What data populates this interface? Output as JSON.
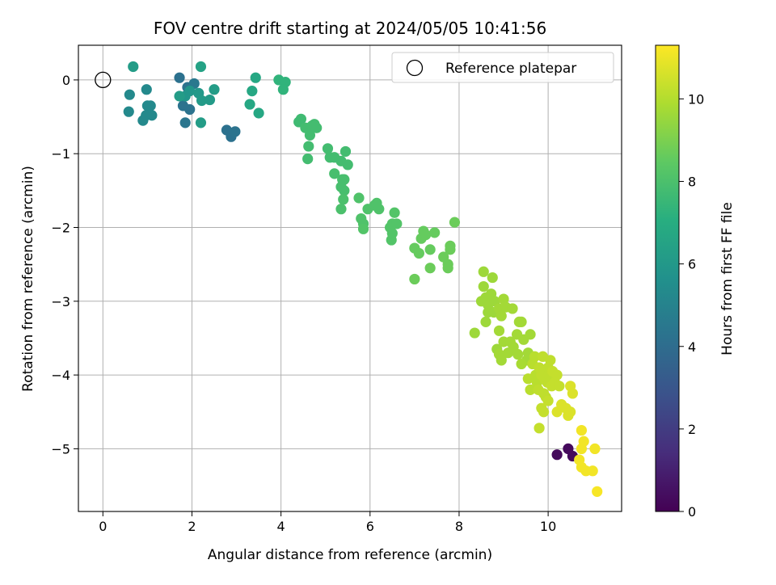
{
  "chart_data": {
    "type": "scatter",
    "title": "FOV centre drift starting at 2024/05/05 10:41:56",
    "xlabel": "Angular distance from reference (arcmin)",
    "ylabel": "Rotation from reference (arcmin)",
    "xlim": [
      -0.55,
      11.65
    ],
    "ylim": [
      -5.85,
      0.47
    ],
    "xticks": [
      "0",
      "2",
      "4",
      "6",
      "8",
      "10"
    ],
    "yticks": [
      "0",
      "−1",
      "−2",
      "−3",
      "−4",
      "−5"
    ],
    "grid": true,
    "legend": {
      "position": "top-right",
      "entries": [
        "Reference platepar"
      ]
    },
    "reference_point": {
      "x": 0,
      "y": 0
    },
    "colorbar": {
      "label": "Hours from first FF file",
      "range": [
        0,
        11.3
      ],
      "ticks": [
        "0",
        "2",
        "4",
        "6",
        "8",
        "10"
      ],
      "colormap": [
        "#440154",
        "#472d7b",
        "#3b528b",
        "#2c728e",
        "#21918c",
        "#28ae80",
        "#5ec962",
        "#addc30",
        "#fde725"
      ]
    },
    "points": [
      [
        10.2,
        -5.08,
        0.3
      ],
      [
        10.45,
        -5.0,
        0.3
      ],
      [
        10.55,
        -5.1,
        0.3
      ],
      [
        1.72,
        0.03,
        4.2
      ],
      [
        1.9,
        -0.1,
        4.3
      ],
      [
        1.95,
        -0.4,
        4.3
      ],
      [
        1.85,
        -0.58,
        4.4
      ],
      [
        1.8,
        -0.35,
        4.3
      ],
      [
        2.05,
        -0.05,
        4.5
      ],
      [
        2.78,
        -0.68,
        4.2
      ],
      [
        2.88,
        -0.77,
        4.2
      ],
      [
        2.97,
        -0.7,
        4.3
      ],
      [
        0.6,
        -0.2,
        5.3
      ],
      [
        0.58,
        -0.43,
        5.3
      ],
      [
        0.9,
        -0.55,
        5.3
      ],
      [
        0.97,
        -0.48,
        5.3
      ],
      [
        1.0,
        -0.35,
        5.3
      ],
      [
        1.07,
        -0.35,
        5.3
      ],
      [
        1.1,
        -0.48,
        5.3
      ],
      [
        0.98,
        -0.13,
        5.3
      ],
      [
        1.85,
        -0.22,
        5.9
      ],
      [
        1.95,
        -0.15,
        5.9
      ],
      [
        2.15,
        -0.18,
        6.0
      ],
      [
        2.22,
        -0.28,
        6.1
      ],
      [
        2.4,
        -0.27,
        6.1
      ],
      [
        2.5,
        -0.13,
        6.2
      ],
      [
        2.2,
        -0.58,
        6.2
      ],
      [
        0.68,
        0.18,
        6.2
      ],
      [
        1.72,
        -0.22,
        6.2
      ],
      [
        2.2,
        0.18,
        6.5
      ],
      [
        3.3,
        -0.33,
        6.7
      ],
      [
        3.35,
        -0.15,
        6.7
      ],
      [
        3.43,
        0.03,
        6.7
      ],
      [
        3.5,
        -0.45,
        6.7
      ],
      [
        3.95,
        0.0,
        7.3
      ],
      [
        4.1,
        -0.03,
        7.3
      ],
      [
        4.05,
        -0.13,
        7.3
      ],
      [
        4.4,
        -0.57,
        7.7
      ],
      [
        4.45,
        -0.53,
        7.7
      ],
      [
        4.55,
        -0.65,
        7.8
      ],
      [
        4.65,
        -0.75,
        7.8
      ],
      [
        4.62,
        -0.9,
        7.8
      ],
      [
        4.6,
        -1.07,
        7.8
      ],
      [
        4.7,
        -0.62,
        7.8
      ],
      [
        4.75,
        -0.6,
        7.8
      ],
      [
        4.8,
        -0.65,
        7.8
      ],
      [
        5.05,
        -0.93,
        7.8
      ],
      [
        5.1,
        -1.05,
        7.8
      ],
      [
        5.2,
        -1.05,
        7.8
      ],
      [
        5.35,
        -1.1,
        7.8
      ],
      [
        5.45,
        -0.97,
        7.8
      ],
      [
        5.5,
        -1.15,
        7.8
      ],
      [
        5.2,
        -1.27,
        7.9
      ],
      [
        5.38,
        -1.35,
        7.9
      ],
      [
        5.42,
        -1.35,
        7.9
      ],
      [
        5.35,
        -1.45,
        7.9
      ],
      [
        5.42,
        -1.5,
        7.9
      ],
      [
        5.4,
        -1.62,
        8.0
      ],
      [
        5.35,
        -1.75,
        8.0
      ],
      [
        5.75,
        -1.6,
        8.1
      ],
      [
        5.8,
        -1.88,
        8.1
      ],
      [
        5.85,
        -1.95,
        8.1
      ],
      [
        5.95,
        -1.75,
        8.1
      ],
      [
        6.1,
        -1.7,
        8.1
      ],
      [
        6.15,
        -1.67,
        8.1
      ],
      [
        6.2,
        -1.75,
        8.1
      ],
      [
        5.85,
        -2.02,
        8.2
      ],
      [
        6.45,
        -2.0,
        8.2
      ],
      [
        6.5,
        -1.95,
        8.2
      ],
      [
        6.55,
        -1.8,
        8.2
      ],
      [
        6.48,
        -2.17,
        8.2
      ],
      [
        6.5,
        -2.08,
        8.2
      ],
      [
        6.6,
        -1.95,
        8.2
      ],
      [
        7.0,
        -2.28,
        8.6
      ],
      [
        7.1,
        -2.35,
        8.6
      ],
      [
        7.15,
        -2.15,
        8.6
      ],
      [
        7.2,
        -2.05,
        8.6
      ],
      [
        7.25,
        -2.1,
        8.6
      ],
      [
        7.35,
        -2.3,
        8.6
      ],
      [
        7.45,
        -2.07,
        8.6
      ],
      [
        7.35,
        -2.55,
        8.7
      ],
      [
        7.0,
        -2.7,
        8.7
      ],
      [
        7.65,
        -2.4,
        8.7
      ],
      [
        7.75,
        -2.5,
        8.7
      ],
      [
        7.75,
        -2.55,
        8.7
      ],
      [
        7.8,
        -2.25,
        8.7
      ],
      [
        7.8,
        -2.3,
        8.7
      ],
      [
        7.9,
        -1.93,
        8.7
      ],
      [
        8.35,
        -3.43,
        9.6
      ],
      [
        8.5,
        -3.0,
        9.6
      ],
      [
        8.55,
        -2.6,
        9.6
      ],
      [
        8.6,
        -3.28,
        9.6
      ],
      [
        8.55,
        -2.8,
        9.6
      ],
      [
        8.6,
        -2.95,
        9.6
      ],
      [
        8.65,
        -3.05,
        9.6
      ],
      [
        8.65,
        -3.15,
        9.6
      ],
      [
        8.72,
        -2.9,
        9.6
      ],
      [
        8.75,
        -2.68,
        9.6
      ],
      [
        8.78,
        -3.15,
        9.6
      ],
      [
        8.8,
        -3.0,
        9.6
      ],
      [
        8.85,
        -3.65,
        9.6
      ],
      [
        8.9,
        -3.1,
        9.7
      ],
      [
        8.95,
        -3.2,
        9.7
      ],
      [
        8.9,
        -3.4,
        9.7
      ],
      [
        9.0,
        -2.97,
        9.7
      ],
      [
        9.0,
        -3.55,
        9.7
      ],
      [
        9.05,
        -3.08,
        9.7
      ],
      [
        9.1,
        -3.7,
        9.7
      ],
      [
        9.15,
        -3.55,
        9.7
      ],
      [
        9.2,
        -3.1,
        9.7
      ],
      [
        9.22,
        -3.62,
        9.7
      ],
      [
        9.3,
        -3.45,
        9.7
      ],
      [
        9.32,
        -3.72,
        9.7
      ],
      [
        9.35,
        -3.28,
        9.7
      ],
      [
        9.4,
        -3.28,
        9.7
      ],
      [
        9.45,
        -3.52,
        9.7
      ],
      [
        9.52,
        -3.8,
        9.7
      ],
      [
        9.55,
        -3.7,
        9.7
      ],
      [
        9.6,
        -3.45,
        9.7
      ],
      [
        8.9,
        -3.72,
        9.7
      ],
      [
        8.95,
        -3.8,
        9.7
      ],
      [
        9.4,
        -3.85,
        9.8
      ],
      [
        9.55,
        -4.05,
        10.1
      ],
      [
        9.6,
        -4.2,
        10.1
      ],
      [
        9.65,
        -3.85,
        10.1
      ],
      [
        9.7,
        -3.75,
        10.1
      ],
      [
        9.72,
        -4.0,
        10.1
      ],
      [
        9.75,
        -4.1,
        10.1
      ],
      [
        9.78,
        -4.2,
        10.2
      ],
      [
        9.8,
        -3.9,
        10.2
      ],
      [
        9.85,
        -4.0,
        10.2
      ],
      [
        9.88,
        -3.75,
        10.2
      ],
      [
        9.9,
        -4.25,
        10.2
      ],
      [
        9.92,
        -4.05,
        10.2
      ],
      [
        9.95,
        -4.3,
        10.2
      ],
      [
        9.98,
        -4.1,
        10.2
      ],
      [
        10.0,
        -3.9,
        10.2
      ],
      [
        10.02,
        -4.0,
        10.2
      ],
      [
        10.05,
        -3.8,
        10.2
      ],
      [
        10.08,
        -4.15,
        10.3
      ],
      [
        10.1,
        -3.95,
        10.3
      ],
      [
        10.15,
        -4.1,
        10.3
      ],
      [
        10.2,
        -4.0,
        10.3
      ],
      [
        10.25,
        -4.15,
        10.3
      ],
      [
        9.8,
        -4.72,
        10.3
      ],
      [
        9.85,
        -4.45,
        10.3
      ],
      [
        9.9,
        -4.5,
        10.3
      ],
      [
        10.0,
        -4.35,
        10.3
      ],
      [
        10.2,
        -4.5,
        10.7
      ],
      [
        10.3,
        -4.4,
        10.7
      ],
      [
        10.4,
        -4.45,
        10.7
      ],
      [
        10.45,
        -4.55,
        10.7
      ],
      [
        10.5,
        -4.5,
        10.7
      ],
      [
        10.5,
        -4.15,
        10.7
      ],
      [
        10.55,
        -4.25,
        10.7
      ],
      [
        10.75,
        -4.75,
        11.1
      ],
      [
        10.75,
        -5.0,
        11.1
      ],
      [
        10.8,
        -4.9,
        11.1
      ],
      [
        10.7,
        -5.15,
        11.1
      ],
      [
        10.75,
        -5.25,
        11.1
      ],
      [
        10.85,
        -5.3,
        11.1
      ],
      [
        11.0,
        -5.3,
        11.1
      ],
      [
        11.05,
        -5.0,
        11.1
      ],
      [
        11.1,
        -5.58,
        11.2
      ]
    ]
  }
}
